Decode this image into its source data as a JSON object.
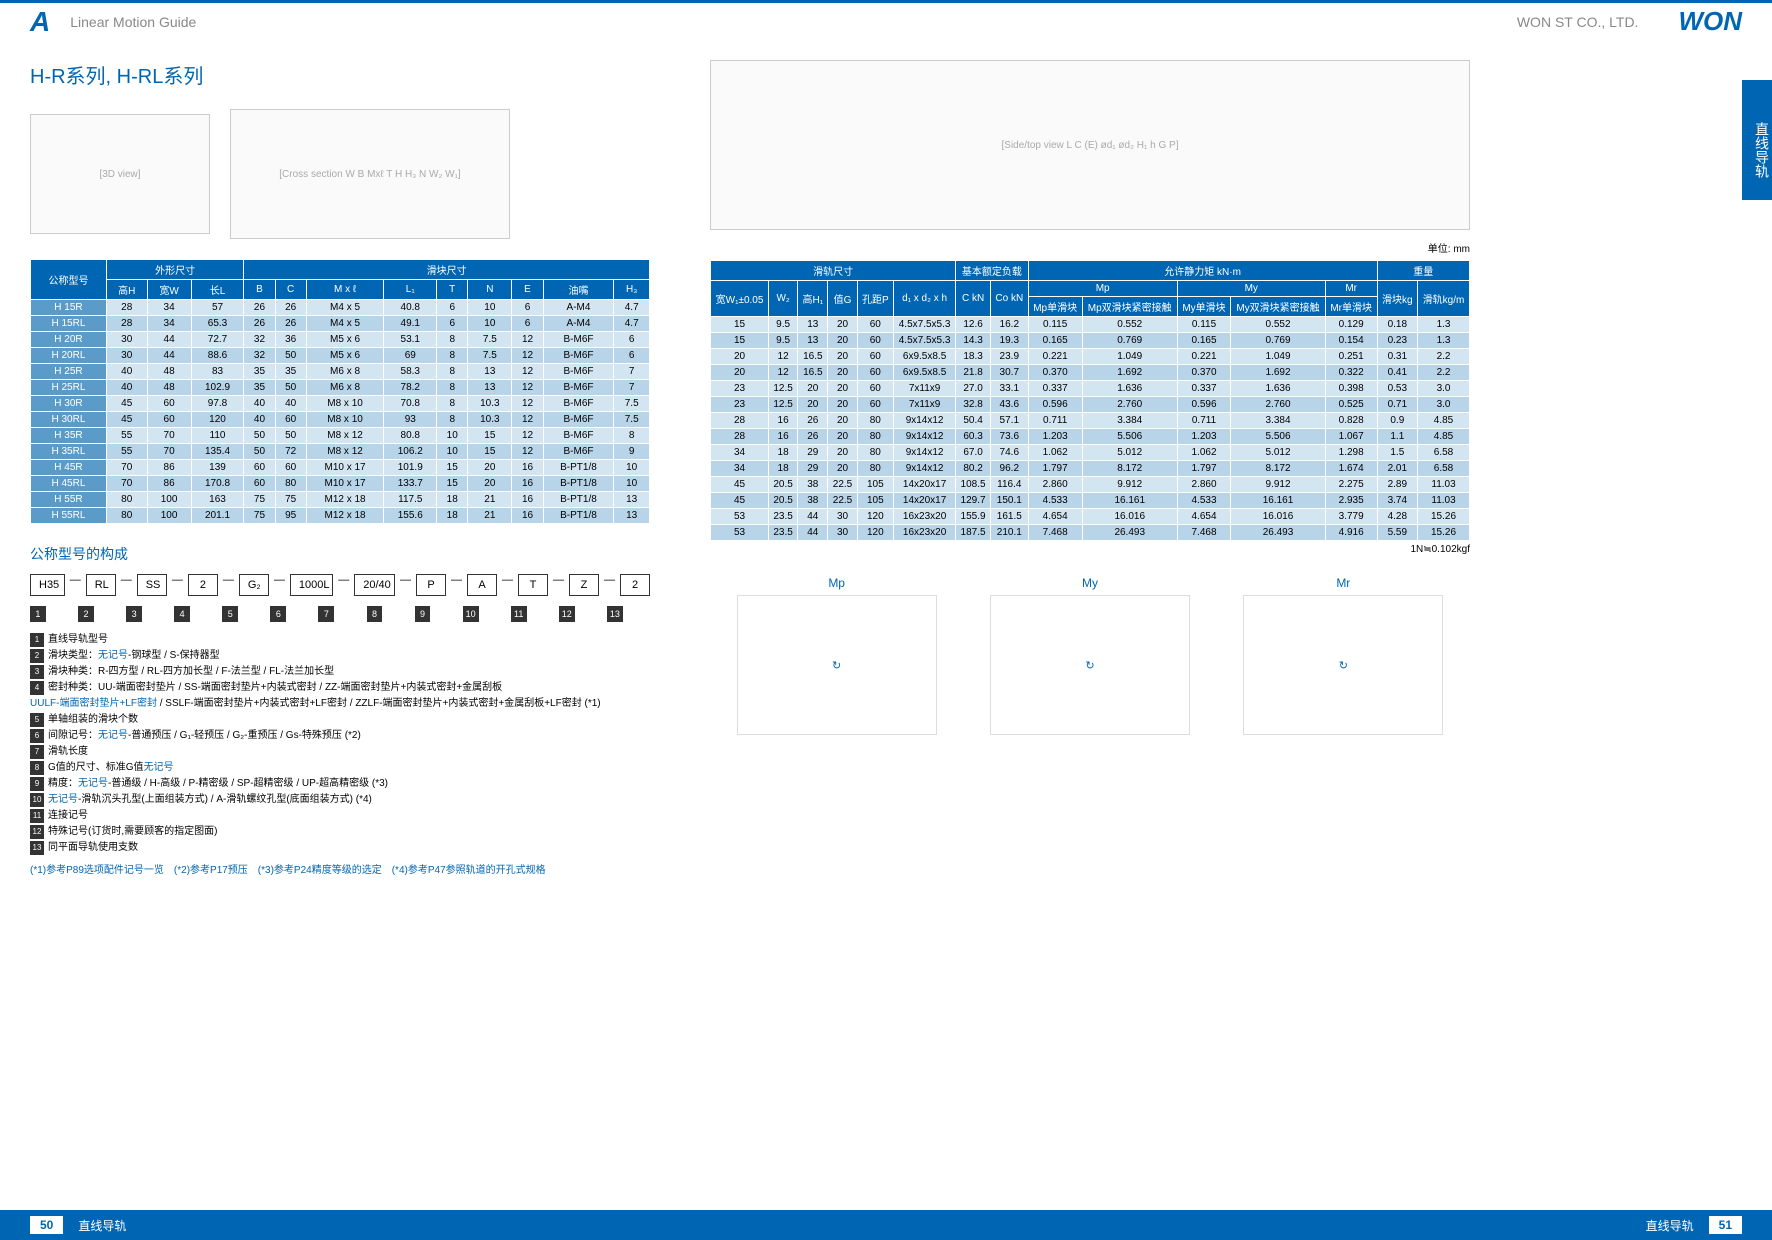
{
  "header": {
    "letter": "A",
    "left": "Linear Motion Guide",
    "right": "WON ST CO., LTD.",
    "logo": "WON"
  },
  "side_tab": "直线导轨",
  "title": "H-R系列, H-RL系列",
  "unit_note": "单位: mm",
  "formula_note": "1N≒0.102kgf",
  "table1": {
    "header_groups": [
      "公称型号",
      "外形尺寸",
      "滑块尺寸"
    ],
    "cols": [
      "公称型号",
      "高H",
      "宽W",
      "长L",
      "B",
      "C",
      "M x ℓ",
      "L₁",
      "T",
      "N",
      "E",
      "油嘴",
      "H₃"
    ],
    "rows": [
      [
        "H 15R",
        "28",
        "34",
        "57",
        "26",
        "26",
        "M4 x 5",
        "40.8",
        "6",
        "10",
        "6",
        "A-M4",
        "4.7"
      ],
      [
        "H 15RL",
        "28",
        "34",
        "65.3",
        "26",
        "26",
        "M4 x 5",
        "49.1",
        "6",
        "10",
        "6",
        "A-M4",
        "4.7"
      ],
      [
        "H 20R",
        "30",
        "44",
        "72.7",
        "32",
        "36",
        "M5 x 6",
        "53.1",
        "8",
        "7.5",
        "12",
        "B-M6F",
        "6"
      ],
      [
        "H 20RL",
        "30",
        "44",
        "88.6",
        "32",
        "50",
        "M5 x 6",
        "69",
        "8",
        "7.5",
        "12",
        "B-M6F",
        "6"
      ],
      [
        "H 25R",
        "40",
        "48",
        "83",
        "35",
        "35",
        "M6 x 8",
        "58.3",
        "8",
        "13",
        "12",
        "B-M6F",
        "7"
      ],
      [
        "H 25RL",
        "40",
        "48",
        "102.9",
        "35",
        "50",
        "M6 x 8",
        "78.2",
        "8",
        "13",
        "12",
        "B-M6F",
        "7"
      ],
      [
        "H 30R",
        "45",
        "60",
        "97.8",
        "40",
        "40",
        "M8 x 10",
        "70.8",
        "8",
        "10.3",
        "12",
        "B-M6F",
        "7.5"
      ],
      [
        "H 30RL",
        "45",
        "60",
        "120",
        "40",
        "60",
        "M8 x 10",
        "93",
        "8",
        "10.3",
        "12",
        "B-M6F",
        "7.5"
      ],
      [
        "H 35R",
        "55",
        "70",
        "110",
        "50",
        "50",
        "M8 x 12",
        "80.8",
        "10",
        "15",
        "12",
        "B-M6F",
        "8"
      ],
      [
        "H 35RL",
        "55",
        "70",
        "135.4",
        "50",
        "72",
        "M8 x 12",
        "106.2",
        "10",
        "15",
        "12",
        "B-M6F",
        "9"
      ],
      [
        "H 45R",
        "70",
        "86",
        "139",
        "60",
        "60",
        "M10 x 17",
        "101.9",
        "15",
        "20",
        "16",
        "B-PT1/8",
        "10"
      ],
      [
        "H 45RL",
        "70",
        "86",
        "170.8",
        "60",
        "80",
        "M10 x 17",
        "133.7",
        "15",
        "20",
        "16",
        "B-PT1/8",
        "10"
      ],
      [
        "H 55R",
        "80",
        "100",
        "163",
        "75",
        "75",
        "M12 x 18",
        "117.5",
        "18",
        "21",
        "16",
        "B-PT1/8",
        "13"
      ],
      [
        "H 55RL",
        "80",
        "100",
        "201.1",
        "75",
        "95",
        "M12 x 18",
        "155.6",
        "18",
        "21",
        "16",
        "B-PT1/8",
        "13"
      ]
    ]
  },
  "table2": {
    "header_groups": [
      "滑轨尺寸",
      "基本额定负载",
      "允许静力矩 kN·m",
      "重量"
    ],
    "cols": [
      "宽W₁±0.05",
      "W₂",
      "高H₁",
      "值G",
      "孔距P",
      "d₁ x d₂ x h",
      "C kN",
      "Co kN",
      "Mp单滑块",
      "Mp双滑块紧密接触",
      "My单滑块",
      "My双滑块紧密接触",
      "Mr单滑块",
      "滑块kg",
      "滑轨kg/m"
    ],
    "rows": [
      [
        "15",
        "9.5",
        "13",
        "20",
        "60",
        "4.5x7.5x5.3",
        "12.6",
        "16.2",
        "0.115",
        "0.552",
        "0.115",
        "0.552",
        "0.129",
        "0.18",
        "1.3"
      ],
      [
        "15",
        "9.5",
        "13",
        "20",
        "60",
        "4.5x7.5x5.3",
        "14.3",
        "19.3",
        "0.165",
        "0.769",
        "0.165",
        "0.769",
        "0.154",
        "0.23",
        "1.3"
      ],
      [
        "20",
        "12",
        "16.5",
        "20",
        "60",
        "6x9.5x8.5",
        "18.3",
        "23.9",
        "0.221",
        "1.049",
        "0.221",
        "1.049",
        "0.251",
        "0.31",
        "2.2"
      ],
      [
        "20",
        "12",
        "16.5",
        "20",
        "60",
        "6x9.5x8.5",
        "21.8",
        "30.7",
        "0.370",
        "1.692",
        "0.370",
        "1.692",
        "0.322",
        "0.41",
        "2.2"
      ],
      [
        "23",
        "12.5",
        "20",
        "20",
        "60",
        "7x11x9",
        "27.0",
        "33.1",
        "0.337",
        "1.636",
        "0.337",
        "1.636",
        "0.398",
        "0.53",
        "3.0"
      ],
      [
        "23",
        "12.5",
        "20",
        "20",
        "60",
        "7x11x9",
        "32.8",
        "43.6",
        "0.596",
        "2.760",
        "0.596",
        "2.760",
        "0.525",
        "0.71",
        "3.0"
      ],
      [
        "28",
        "16",
        "26",
        "20",
        "80",
        "9x14x12",
        "50.4",
        "57.1",
        "0.711",
        "3.384",
        "0.711",
        "3.384",
        "0.828",
        "0.9",
        "4.85"
      ],
      [
        "28",
        "16",
        "26",
        "20",
        "80",
        "9x14x12",
        "60.3",
        "73.6",
        "1.203",
        "5.506",
        "1.203",
        "5.506",
        "1.067",
        "1.1",
        "4.85"
      ],
      [
        "34",
        "18",
        "29",
        "20",
        "80",
        "9x14x12",
        "67.0",
        "74.6",
        "1.062",
        "5.012",
        "1.062",
        "5.012",
        "1.298",
        "1.5",
        "6.58"
      ],
      [
        "34",
        "18",
        "29",
        "20",
        "80",
        "9x14x12",
        "80.2",
        "96.2",
        "1.797",
        "8.172",
        "1.797",
        "8.172",
        "1.674",
        "2.01",
        "6.58"
      ],
      [
        "45",
        "20.5",
        "38",
        "22.5",
        "105",
        "14x20x17",
        "108.5",
        "116.4",
        "2.860",
        "9.912",
        "2.860",
        "9.912",
        "2.275",
        "2.89",
        "11.03"
      ],
      [
        "45",
        "20.5",
        "38",
        "22.5",
        "105",
        "14x20x17",
        "129.7",
        "150.1",
        "4.533",
        "16.161",
        "4.533",
        "16.161",
        "2.935",
        "3.74",
        "11.03"
      ],
      [
        "53",
        "23.5",
        "44",
        "30",
        "120",
        "16x23x20",
        "155.9",
        "161.5",
        "4.654",
        "16.016",
        "4.654",
        "16.016",
        "3.779",
        "4.28",
        "15.26"
      ],
      [
        "53",
        "23.5",
        "44",
        "30",
        "120",
        "16x23x20",
        "187.5",
        "210.1",
        "7.468",
        "26.493",
        "7.468",
        "26.493",
        "4.916",
        "5.59",
        "15.26"
      ]
    ]
  },
  "config": {
    "title": "公称型号的构成",
    "boxes": [
      "H35",
      "RL",
      "SS",
      "2",
      "G₂",
      "1000L",
      "20/40",
      "P",
      "A",
      "T",
      "Z",
      "2"
    ],
    "nums": [
      "1",
      "2",
      "3",
      "4",
      "5",
      "6",
      "7",
      "8",
      "9",
      "10",
      "11",
      "12",
      "13"
    ]
  },
  "notes": [
    {
      "n": "1",
      "t": "直线导轨型号"
    },
    {
      "n": "2",
      "t": "滑块类型：无记号-钢球型 / S-保持器型"
    },
    {
      "n": "3",
      "t": "滑块种类：R-四方型 / RL-四方加长型 / F-法兰型 / FL-法兰加长型"
    },
    {
      "n": "4",
      "t": "密封种类：UU-端面密封垫片 / SS-端面密封垫片+内装式密封 / ZZ-端面密封垫片+内装式密封+金属刮板"
    },
    {
      "n": "",
      "t": "UULF-端面密封垫片+LF密封 / SSLF-端面密封垫片+内装式密封+LF密封 / ZZLF-端面密封垫片+内装式密封+金属刮板+LF密封 (*1)"
    },
    {
      "n": "5",
      "t": "单轴组装的滑块个数"
    },
    {
      "n": "6",
      "t": "间隙记号：无记号-普通预压 / G₁-轻预压 / G₂-重预压 / Gs-特殊预压 (*2)"
    },
    {
      "n": "7",
      "t": "滑轨长度"
    },
    {
      "n": "8",
      "t": "G值的尺寸、标准G值无记号"
    },
    {
      "n": "9",
      "t": "精度：无记号-普通级 / H-高级 / P-精密级 / SP-超精密级 / UP-超高精密级 (*3)"
    },
    {
      "n": "10",
      "t": "无记号-滑轨沉头孔型(上面组装方式) / A-滑轨螺纹孔型(底面组装方式) (*4)"
    },
    {
      "n": "11",
      "t": "连接记号"
    },
    {
      "n": "12",
      "t": "特殊记号(订货时,需要顾客的指定图面)"
    },
    {
      "n": "13",
      "t": "同平面导轨使用支数"
    }
  ],
  "refs": "(*1)参考P89选项配件记号一览　(*2)参考P17预压　(*3)参考P24精度等级的选定　(*4)参考P47参照轨道的开孔式规格",
  "moments": [
    "Mp",
    "My",
    "Mr"
  ],
  "footer": {
    "left_page": "50",
    "left_text": "直线导轨",
    "right_text": "直线导轨",
    "right_page": "51"
  }
}
